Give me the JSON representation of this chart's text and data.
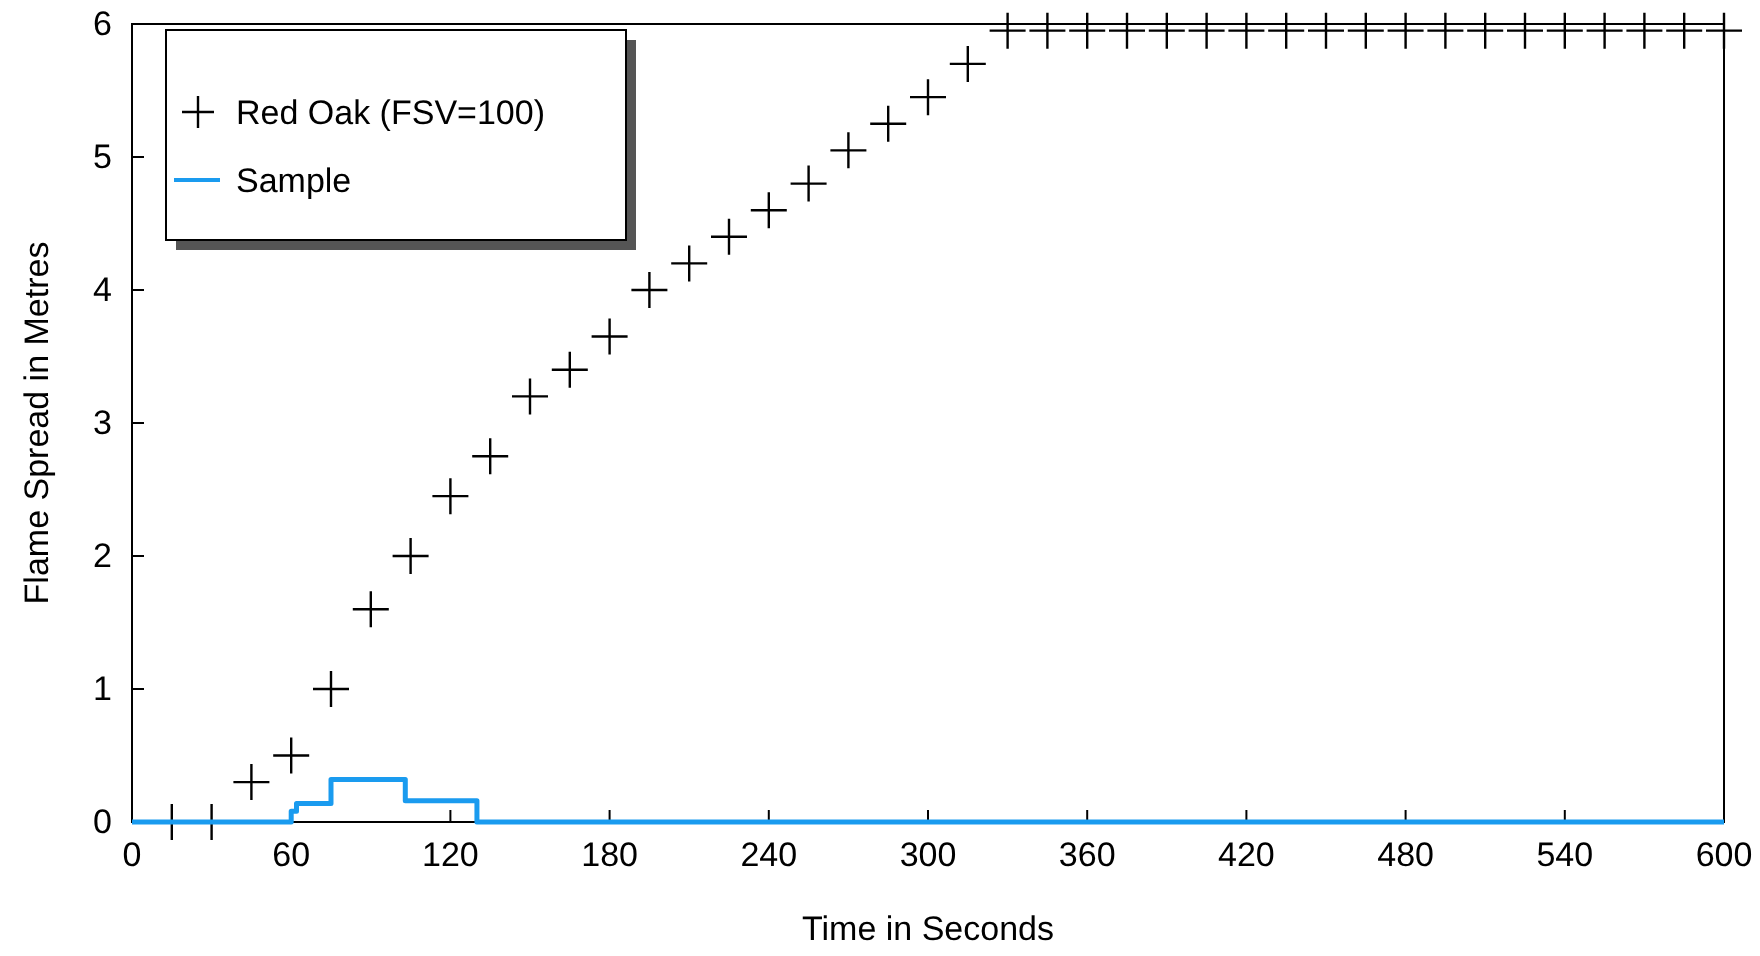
{
  "chart_data": {
    "type": "scatter",
    "xlabel": "Time in Seconds",
    "ylabel": "Flame Spread in Metres",
    "xlim": [
      0,
      600
    ],
    "xticks": [
      0,
      60,
      120,
      180,
      240,
      300,
      360,
      420,
      480,
      540,
      600
    ],
    "ylim": [
      0,
      6
    ],
    "yticks": [
      0,
      1,
      2,
      3,
      4,
      5,
      6
    ],
    "grid": false,
    "legend": "top left",
    "series": [
      {
        "name": "Red Oak (FSV=100)",
        "marker": "cross",
        "color": "#000000",
        "x": [
          15,
          30,
          45,
          60,
          75,
          90,
          105,
          120,
          135,
          150,
          165,
          180,
          195,
          210,
          225,
          240,
          255,
          270,
          285,
          300,
          315,
          330,
          345,
          360,
          375,
          390,
          405,
          420,
          435,
          450,
          465,
          480,
          495,
          510,
          525,
          540,
          555,
          570,
          585,
          600
        ],
        "values": [
          0,
          0,
          0.3,
          0.5,
          1.0,
          1.6,
          2.0,
          2.45,
          2.75,
          3.2,
          3.4,
          3.65,
          4.0,
          4.2,
          4.4,
          4.6,
          4.8,
          5.05,
          5.25,
          5.45,
          5.7,
          5.95,
          5.95,
          5.95,
          5.95,
          5.95,
          5.95,
          5.95,
          5.95,
          5.95,
          5.95,
          5.95,
          5.95,
          5.95,
          5.95,
          5.95,
          5.95,
          5.95,
          5.95,
          5.95
        ]
      },
      {
        "name": "Sample",
        "type": "step",
        "color": "#1a9bef",
        "x": [
          0,
          60,
          62,
          75,
          103,
          130,
          600
        ],
        "values": [
          0,
          0.08,
          0.14,
          0.32,
          0.16,
          0,
          0
        ]
      }
    ]
  }
}
